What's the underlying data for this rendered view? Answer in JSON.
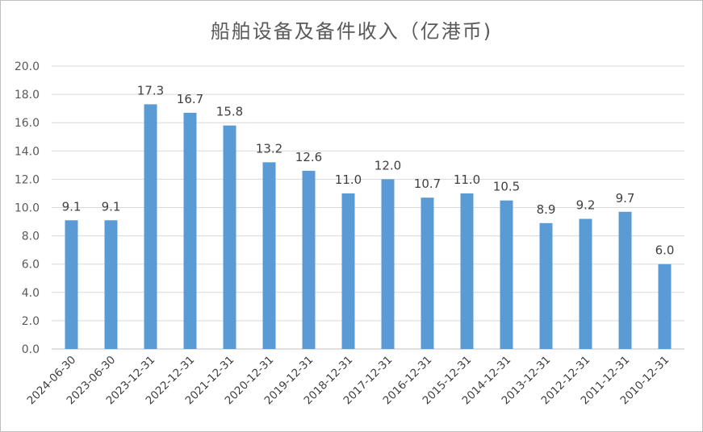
{
  "chart_data": {
    "type": "bar",
    "title": "船舶设备及备件收入（亿港币)",
    "categories": [
      "2024-06-30",
      "2023-06-30",
      "2023-12-31",
      "2022-12-31",
      "2021-12-31",
      "2020-12-31",
      "2019-12-31",
      "2018-12-31",
      "2017-12-31",
      "2016-12-31",
      "2015-12-31",
      "2014-12-31",
      "2013-12-31",
      "2012-12-31",
      "2011-12-31",
      "2010-12-31"
    ],
    "values": [
      9.1,
      9.1,
      17.3,
      16.7,
      15.8,
      13.2,
      12.6,
      11.0,
      12.0,
      10.7,
      11.0,
      10.5,
      8.9,
      9.2,
      9.7,
      6.0
    ],
    "data_labels": [
      "9.1",
      "9.1",
      "17.3",
      "16.7",
      "15.8",
      "13.2",
      "12.6",
      "11.0",
      "12.0",
      "10.7",
      "11.0",
      "10.5",
      "8.9",
      "9.2",
      "9.7",
      "6.0"
    ],
    "yticks": [
      "0.0",
      "2.0",
      "4.0",
      "6.0",
      "8.0",
      "10.0",
      "12.0",
      "14.0",
      "16.0",
      "18.0",
      "20.0"
    ],
    "ylim": [
      0,
      20
    ],
    "xlabel": "",
    "ylabel": "",
    "grid": true,
    "legend": "none",
    "bar_color": "#5b9bd5"
  }
}
